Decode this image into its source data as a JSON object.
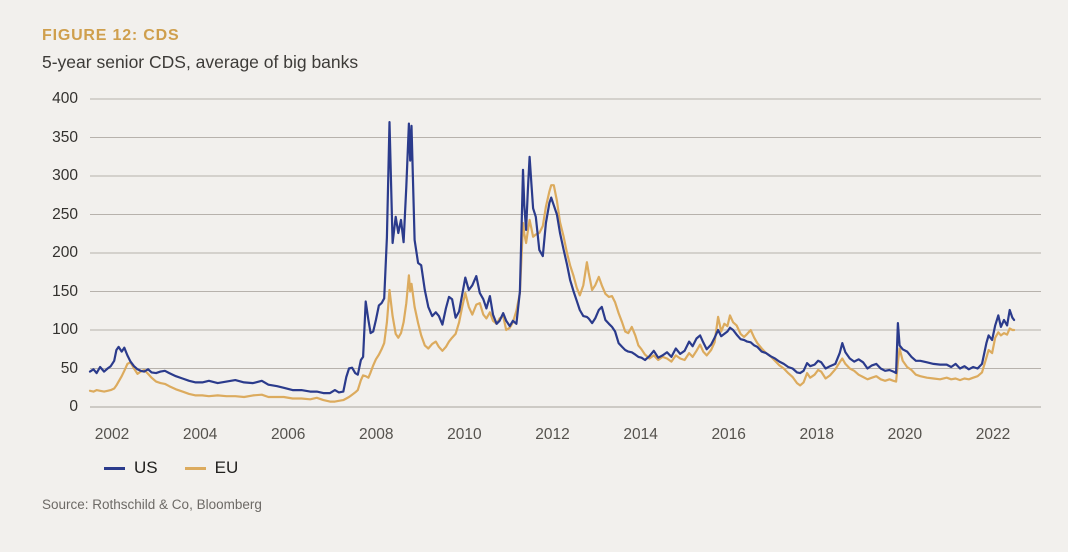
{
  "figure": {
    "title": "FIGURE 12: CDS",
    "subtitle": "5-year senior CDS, average of big banks",
    "source": "Source: Rothschild & Co, Bloomberg"
  },
  "colors": {
    "background": "#f2f0ed",
    "title": "#cf9f4d",
    "grid": "#b7b2ac",
    "us_line": "#2b3b8c",
    "eu_line": "#dcab5e",
    "y_tick_text": "#33312e",
    "x_tick_text": "#55524d",
    "legend_text": "#21201e",
    "source_text": "#6d6a66"
  },
  "chart_data": {
    "type": "line",
    "title": "FIGURE 12: CDS",
    "subtitle": "5-year senior CDS, average of big banks",
    "xlabel": "",
    "ylabel": "",
    "xlim": [
      2001.5,
      2023.05
    ],
    "ylim": [
      0,
      400
    ],
    "x_ticks": [
      2002,
      2004,
      2006,
      2008,
      2010,
      2012,
      2014,
      2016,
      2018,
      2020,
      2022
    ],
    "y_ticks": [
      0,
      50,
      100,
      150,
      200,
      250,
      300,
      350,
      400
    ],
    "grid": "horizontal",
    "legend_position": "bottom-left",
    "source": "Source: Rothschild & Co, Bloomberg",
    "x": [
      2001.5,
      2001.58,
      2001.65,
      2001.73,
      2001.82,
      2001.9,
      2001.97,
      2002.05,
      2002.1,
      2002.15,
      2002.22,
      2002.28,
      2002.35,
      2002.42,
      2002.5,
      2002.58,
      2002.65,
      2002.73,
      2002.82,
      2002.9,
      2003.0,
      2003.1,
      2003.2,
      2003.3,
      2003.45,
      2003.6,
      2003.75,
      2003.9,
      2004.05,
      2004.2,
      2004.4,
      2004.6,
      2004.8,
      2005.0,
      2005.2,
      2005.4,
      2005.55,
      2005.75,
      2005.9,
      2006.1,
      2006.3,
      2006.5,
      2006.65,
      2006.8,
      2006.95,
      2007.06,
      2007.15,
      2007.25,
      2007.32,
      2007.38,
      2007.45,
      2007.52,
      2007.58,
      2007.65,
      2007.7,
      2007.76,
      2007.82,
      2007.87,
      2007.93,
      2007.99,
      2008.06,
      2008.12,
      2008.18,
      2008.24,
      2008.3,
      2008.37,
      2008.44,
      2008.5,
      2008.56,
      2008.62,
      2008.68,
      2008.74,
      2008.77,
      2008.8,
      2008.87,
      2008.95,
      2009.02,
      2009.1,
      2009.18,
      2009.27,
      2009.35,
      2009.42,
      2009.5,
      2009.58,
      2009.65,
      2009.72,
      2009.8,
      2009.88,
      2009.95,
      2010.02,
      2010.1,
      2010.18,
      2010.27,
      2010.35,
      2010.43,
      2010.5,
      2010.58,
      2010.65,
      2010.73,
      2010.8,
      2010.88,
      2010.95,
      2011.03,
      2011.1,
      2011.18,
      2011.26,
      2011.3,
      2011.33,
      2011.36,
      2011.4,
      2011.44,
      2011.48,
      2011.52,
      2011.56,
      2011.62,
      2011.7,
      2011.78,
      2011.85,
      2011.93,
      2011.97,
      2012.03,
      2012.1,
      2012.17,
      2012.25,
      2012.33,
      2012.4,
      2012.48,
      2012.55,
      2012.62,
      2012.7,
      2012.78,
      2012.82,
      2012.9,
      2012.97,
      2013.05,
      2013.12,
      2013.2,
      2013.28,
      2013.35,
      2013.42,
      2013.5,
      2013.58,
      2013.65,
      2013.72,
      2013.8,
      2013.88,
      2013.95,
      2014.02,
      2014.1,
      2014.2,
      2014.3,
      2014.4,
      2014.5,
      2014.6,
      2014.7,
      2014.8,
      2014.9,
      2015.0,
      2015.1,
      2015.18,
      2015.27,
      2015.35,
      2015.42,
      2015.5,
      2015.6,
      2015.68,
      2015.76,
      2015.83,
      2015.9,
      2015.97,
      2016.03,
      2016.1,
      2016.18,
      2016.27,
      2016.35,
      2016.42,
      2016.5,
      2016.58,
      2016.65,
      2016.75,
      2016.85,
      2016.95,
      2017.05,
      2017.15,
      2017.25,
      2017.35,
      2017.45,
      2017.55,
      2017.62,
      2017.7,
      2017.78,
      2017.85,
      2017.95,
      2018.03,
      2018.1,
      2018.2,
      2018.3,
      2018.42,
      2018.52,
      2018.58,
      2018.65,
      2018.75,
      2018.85,
      2018.95,
      2019.05,
      2019.15,
      2019.25,
      2019.35,
      2019.45,
      2019.55,
      2019.65,
      2019.74,
      2019.8,
      2019.84,
      2019.88,
      2019.95,
      2020.05,
      2020.15,
      2020.25,
      2020.35,
      2020.5,
      2020.65,
      2020.8,
      2020.95,
      2021.05,
      2021.15,
      2021.25,
      2021.35,
      2021.45,
      2021.55,
      2021.65,
      2021.75,
      2021.85,
      2021.9,
      2021.98,
      2022.05,
      2022.12,
      2022.18,
      2022.25,
      2022.32,
      2022.38,
      2022.44,
      2022.48
    ],
    "series": [
      {
        "name": "US",
        "color": "#2b3b8c",
        "values": [
          46,
          49,
          44,
          52,
          46,
          50,
          53,
          60,
          74,
          78,
          72,
          77,
          67,
          59,
          53,
          49,
          47,
          46,
          49,
          45,
          44,
          46,
          47,
          44,
          40,
          37,
          34,
          32,
          32,
          34,
          31,
          33,
          35,
          32,
          31,
          34,
          29,
          27,
          25,
          22,
          22,
          20,
          20,
          18,
          18,
          22,
          19,
          20,
          39,
          50,
          51,
          44,
          42,
          61,
          65,
          137,
          113,
          96,
          98,
          113,
          132,
          135,
          141,
          220,
          370,
          213,
          247,
          226,
          243,
          214,
          286,
          368,
          320,
          365,
          217,
          187,
          184,
          152,
          130,
          118,
          123,
          118,
          107,
          128,
          143,
          140,
          116,
          124,
          146,
          168,
          152,
          158,
          170,
          148,
          140,
          128,
          144,
          120,
          108,
          112,
          122,
          112,
          105,
          112,
          108,
          150,
          240,
          308,
          262,
          230,
          280,
          325,
          290,
          258,
          247,
          204,
          196,
          239,
          265,
          272,
          262,
          250,
          226,
          205,
          185,
          165,
          150,
          138,
          126,
          118,
          117,
          115,
          109,
          115,
          126,
          130,
          113,
          108,
          104,
          98,
          83,
          78,
          74,
          72,
          71,
          68,
          65,
          64,
          61,
          66,
          73,
          64,
          67,
          71,
          65,
          76,
          69,
          73,
          85,
          79,
          89,
          93,
          84,
          75,
          81,
          90,
          100,
          92,
          95,
          98,
          103,
          100,
          94,
          88,
          87,
          85,
          84,
          80,
          78,
          72,
          70,
          66,
          63,
          59,
          56,
          52,
          50,
          45,
          44,
          47,
          57,
          53,
          55,
          60,
          58,
          50,
          53,
          56,
          70,
          83,
          71,
          63,
          59,
          62,
          58,
          50,
          54,
          56,
          50,
          47,
          48,
          46,
          44,
          109,
          80,
          75,
          72,
          65,
          60,
          60,
          58,
          56,
          55,
          55,
          52,
          56,
          50,
          53,
          49,
          52,
          50,
          56,
          83,
          93,
          87,
          106,
          119,
          104,
          113,
          106,
          126,
          116,
          113
        ]
      },
      {
        "name": "EU",
        "color": "#dcab5e",
        "values": [
          21,
          20,
          22,
          21,
          20,
          21,
          22,
          24,
          28,
          33,
          40,
          47,
          56,
          58,
          50,
          43,
          46,
          48,
          43,
          38,
          33,
          31,
          30,
          27,
          23,
          20,
          17,
          15,
          15,
          14,
          15,
          14,
          14,
          13,
          15,
          16,
          13,
          13,
          13,
          11,
          11,
          10,
          12,
          9,
          7,
          7,
          8,
          9,
          11,
          13,
          16,
          19,
          22,
          35,
          41,
          40,
          38,
          45,
          54,
          62,
          68,
          75,
          83,
          110,
          152,
          118,
          95,
          90,
          96,
          110,
          135,
          171,
          150,
          160,
          130,
          109,
          93,
          80,
          76,
          82,
          85,
          78,
          73,
          78,
          85,
          90,
          95,
          110,
          130,
          148,
          130,
          120,
          133,
          135,
          120,
          115,
          123,
          112,
          108,
          115,
          118,
          100,
          103,
          110,
          125,
          148,
          200,
          239,
          225,
          213,
          228,
          243,
          232,
          221,
          224,
          226,
          235,
          260,
          280,
          288,
          288,
          268,
          240,
          222,
          200,
          184,
          170,
          155,
          145,
          158,
          188,
          175,
          152,
          158,
          169,
          158,
          147,
          143,
          144,
          136,
          122,
          110,
          98,
          96,
          104,
          93,
          80,
          75,
          68,
          63,
          67,
          61,
          65,
          63,
          59,
          67,
          63,
          61,
          70,
          65,
          73,
          81,
          72,
          67,
          74,
          84,
          117,
          98,
          108,
          105,
          119,
          110,
          106,
          95,
          91,
          95,
          100,
          90,
          83,
          76,
          70,
          66,
          60,
          54,
          50,
          44,
          39,
          31,
          28,
          32,
          44,
          38,
          42,
          48,
          46,
          37,
          41,
          49,
          58,
          63,
          56,
          50,
          47,
          42,
          39,
          36,
          38,
          40,
          36,
          34,
          36,
          34,
          33,
          58,
          76,
          60,
          52,
          48,
          42,
          40,
          38,
          37,
          36,
          38,
          36,
          37,
          35,
          37,
          36,
          38,
          40,
          45,
          64,
          74,
          70,
          90,
          97,
          93,
          96,
          94,
          102,
          100,
          100
        ]
      }
    ]
  }
}
